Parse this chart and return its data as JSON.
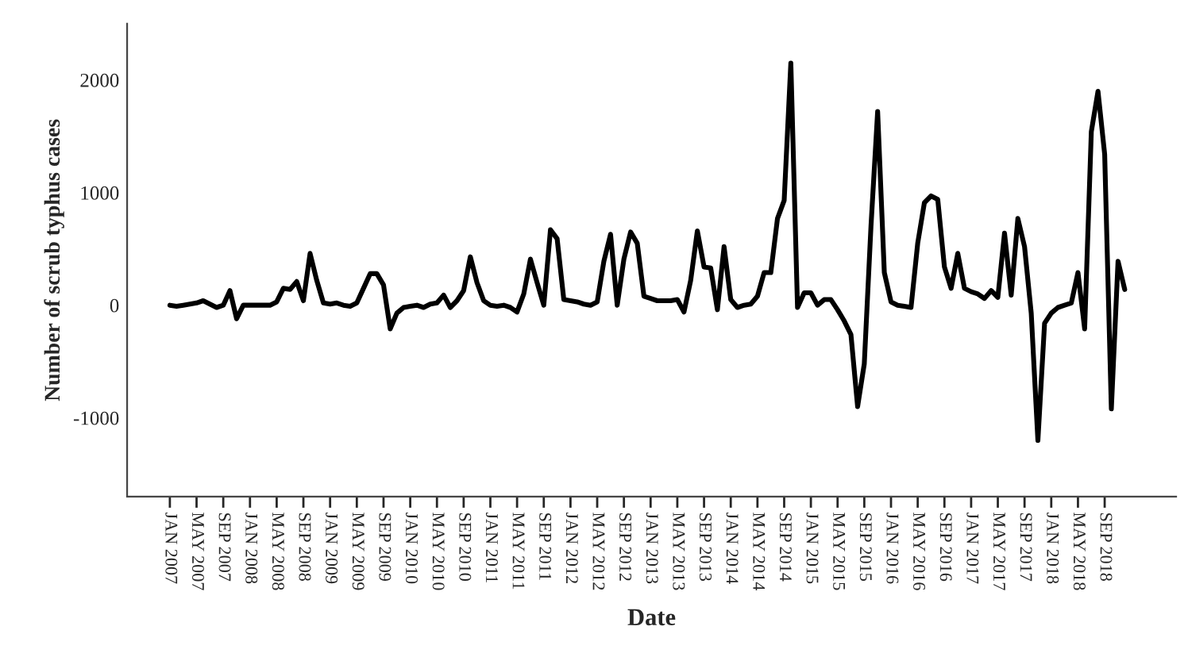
{
  "chart_data": {
    "type": "line",
    "xlabel": "Date",
    "ylabel": "Number of scrub typhus cases",
    "categories": [
      "JAN 2007",
      null,
      null,
      null,
      "MAY 2007",
      null,
      null,
      null,
      "SEP 2007",
      null,
      null,
      null,
      "JAN 2008",
      null,
      null,
      null,
      "MAY 2008",
      null,
      null,
      null,
      "SEP 2008",
      null,
      null,
      null,
      "JAN 2009",
      null,
      null,
      null,
      "MAY 2009",
      null,
      null,
      null,
      "SEP 2009",
      null,
      null,
      null,
      "JAN 2010",
      null,
      null,
      null,
      "MAY 2010",
      null,
      null,
      null,
      "SEP 2010",
      null,
      null,
      null,
      "JAN 2011",
      null,
      null,
      null,
      "MAY 2011",
      null,
      null,
      null,
      "SEP 2011",
      null,
      null,
      null,
      "JAN 2012",
      null,
      null,
      null,
      "MAY 2012",
      null,
      null,
      null,
      "SEP 2012",
      null,
      null,
      null,
      "JAN 2013",
      null,
      null,
      null,
      "MAY 2013",
      null,
      null,
      null,
      "SEP 2013",
      null,
      null,
      null,
      "JAN 2014",
      null,
      null,
      null,
      "MAY 2014",
      null,
      null,
      null,
      "SEP 2014",
      null,
      null,
      null,
      "JAN 2015",
      null,
      null,
      null,
      "MAY 2015",
      null,
      null,
      null,
      "SEP 2015",
      null,
      null,
      null,
      "JAN 2016",
      null,
      null,
      null,
      "MAY 2016",
      null,
      null,
      null,
      "SEP 2016",
      null,
      null,
      null,
      "JAN 2017",
      null,
      null,
      null,
      "MAY 2017",
      null,
      null,
      null,
      "SEP 2017",
      null,
      null,
      null,
      "JAN 2018",
      null,
      null,
      null,
      "MAY 2018",
      null,
      null,
      null,
      "SEP 2018",
      null,
      null,
      null
    ],
    "series": [
      {
        "color": "#000000",
        "values": [
          0,
          -10,
          0,
          10,
          20,
          40,
          10,
          -20,
          0,
          130,
          -120,
          0,
          0,
          0,
          0,
          0,
          30,
          150,
          140,
          210,
          40,
          460,
          220,
          20,
          10,
          20,
          0,
          -10,
          20,
          150,
          280,
          280,
          180,
          -210,
          -70,
          -20,
          -10,
          0,
          -20,
          10,
          20,
          90,
          -20,
          40,
          130,
          430,
          200,
          40,
          0,
          -10,
          0,
          -20,
          -60,
          100,
          410,
          200,
          0,
          670,
          590,
          50,
          40,
          30,
          10,
          0,
          30,
          390,
          630,
          0,
          410,
          650,
          550,
          80,
          60,
          40,
          40,
          40,
          50,
          -60,
          220,
          660,
          340,
          330,
          -40,
          520,
          50,
          -20,
          0,
          10,
          80,
          290,
          290,
          770,
          930,
          2150,
          -20,
          110,
          110,
          0,
          50,
          50,
          -40,
          -140,
          -260,
          -900,
          -520,
          700,
          1720,
          290,
          30,
          0,
          -10,
          -20,
          550,
          910,
          970,
          940,
          340,
          150,
          460,
          150,
          120,
          100,
          60,
          130,
          70,
          640,
          90,
          770,
          520,
          -70,
          -1200,
          -160,
          -70,
          -20,
          0,
          20,
          290,
          -210,
          1540,
          1900,
          1340,
          -920,
          390,
          140
        ]
      }
    ],
    "ylim": [
      -1700,
      2500
    ],
    "yticks": [
      -1000,
      0,
      1000,
      2000
    ],
    "grid": false,
    "legend": false,
    "marker": "none",
    "line_style": "solid"
  }
}
